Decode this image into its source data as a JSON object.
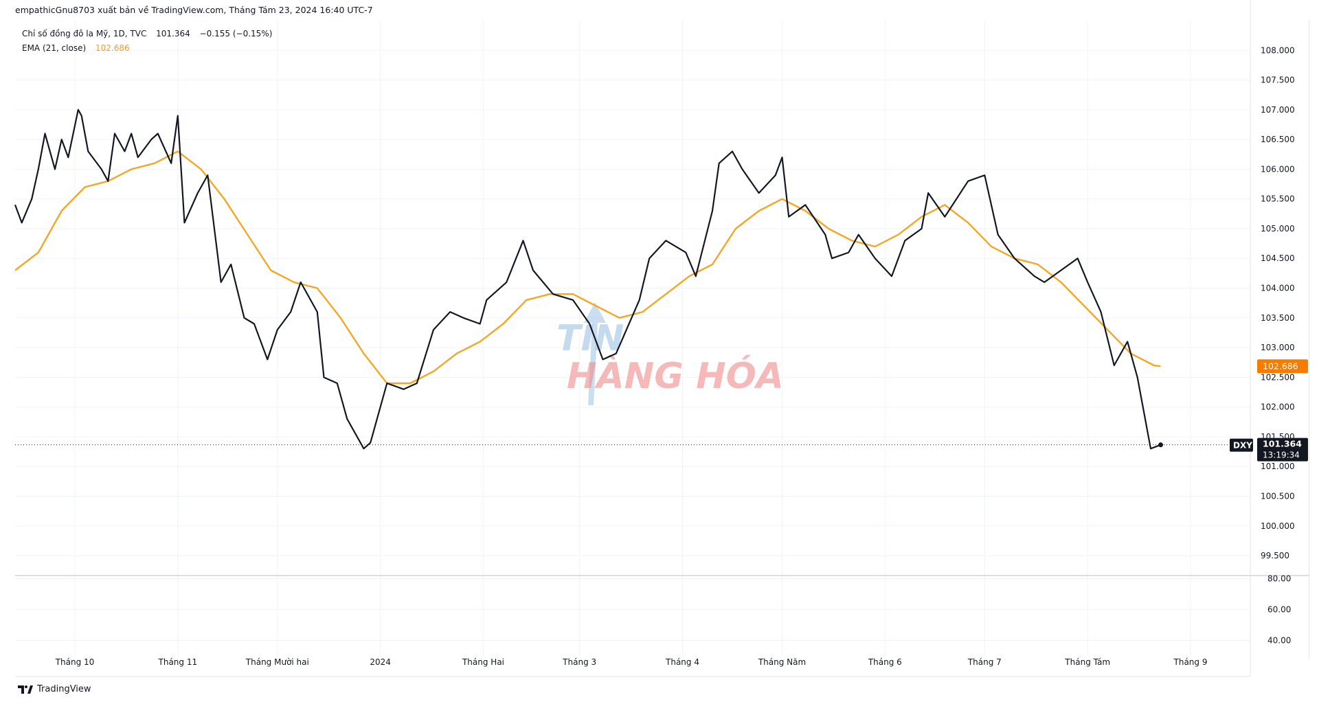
{
  "header": {
    "publisher": "empathicGnu8703 xuất bản về TradingView.com, Tháng Tám 23, 2024 16:40 UTC-7"
  },
  "legend": {
    "symbol_line": "Chỉ số đồng đô la Mỹ, 1D, TVC",
    "last_price": "101.364",
    "change": "−0.155 (−0.15%)",
    "ema_label": "EMA (21, close)",
    "ema_value": "102.686"
  },
  "watermark": {
    "line1": "TIN",
    "line2": "HÀNG HÓA"
  },
  "price_badge": {
    "symbol": "DXY",
    "price": "101.364",
    "countdown": "13:19:34",
    "ema_tag": "102.686"
  },
  "footer": {
    "brand": "TradingView"
  },
  "colors": {
    "price_line": "#131722",
    "ema_line": "#f5a623",
    "ema_badge": "#f57c00",
    "grid": "#f0f3fa"
  },
  "chart_data": {
    "type": "line",
    "title": "Chỉ số đồng đô la Mỹ, 1D, TVC",
    "ylim": [
      99.2,
      108.5
    ],
    "y_ticks": [
      "108.000",
      "107.500",
      "107.000",
      "106.500",
      "106.000",
      "105.500",
      "105.000",
      "104.500",
      "104.000",
      "103.500",
      "103.000",
      "102.500",
      "102.000",
      "101.500",
      "101.000",
      "100.500",
      "100.000",
      "99.500"
    ],
    "x_ticks": [
      "Tháng 10",
      "Tháng 11",
      "Tháng Mười hai",
      "2024",
      "Tháng Hai",
      "Tháng 3",
      "Tháng 4",
      "Tháng Năm",
      "Tháng 6",
      "Tháng 7",
      "Tháng Tám",
      "Tháng 9"
    ],
    "x_range": [
      "2023-09-13",
      "2024-09-19"
    ],
    "lower_pane": {
      "ticks": [
        "80.00",
        "60.00",
        "40.00"
      ],
      "ylim": [
        30,
        82
      ]
    },
    "series": [
      {
        "name": "Chỉ số đồng đô la Mỹ",
        "x": [
          "2023-09-13",
          "2023-09-15",
          "2023-09-18",
          "2023-09-20",
          "2023-09-22",
          "2023-09-25",
          "2023-09-27",
          "2023-09-29",
          "2023-10-02",
          "2023-10-03",
          "2023-10-05",
          "2023-10-09",
          "2023-10-11",
          "2023-10-13",
          "2023-10-16",
          "2023-10-18",
          "2023-10-20",
          "2023-10-24",
          "2023-10-26",
          "2023-10-30",
          "2023-11-01",
          "2023-11-03",
          "2023-11-07",
          "2023-11-10",
          "2023-11-14",
          "2023-11-17",
          "2023-11-21",
          "2023-11-24",
          "2023-11-28",
          "2023-12-01",
          "2023-12-05",
          "2023-12-08",
          "2023-12-13",
          "2023-12-15",
          "2023-12-19",
          "2023-12-22",
          "2023-12-27",
          "2023-12-29",
          "2024-01-03",
          "2024-01-08",
          "2024-01-12",
          "2024-01-17",
          "2024-01-22",
          "2024-01-26",
          "2024-01-31",
          "2024-02-02",
          "2024-02-08",
          "2024-02-13",
          "2024-02-16",
          "2024-02-22",
          "2024-02-28",
          "2024-03-04",
          "2024-03-08",
          "2024-03-12",
          "2024-03-19",
          "2024-03-22",
          "2024-03-27",
          "2024-04-02",
          "2024-04-05",
          "2024-04-10",
          "2024-04-12",
          "2024-04-16",
          "2024-04-19",
          "2024-04-24",
          "2024-04-29",
          "2024-05-01",
          "2024-05-03",
          "2024-05-08",
          "2024-05-14",
          "2024-05-16",
          "2024-05-21",
          "2024-05-24",
          "2024-05-29",
          "2024-06-03",
          "2024-06-07",
          "2024-06-12",
          "2024-06-14",
          "2024-06-19",
          "2024-06-26",
          "2024-07-01",
          "2024-07-05",
          "2024-07-10",
          "2024-07-16",
          "2024-07-19",
          "2024-07-24",
          "2024-07-29",
          "2024-08-01",
          "2024-08-05",
          "2024-08-09",
          "2024-08-13",
          "2024-08-16",
          "2024-08-20",
          "2024-08-23"
        ],
        "y": [
          105.4,
          105.1,
          105.5,
          106.0,
          106.6,
          106.0,
          106.5,
          106.2,
          107.0,
          106.9,
          106.3,
          106.0,
          105.8,
          106.6,
          106.3,
          106.6,
          106.2,
          106.5,
          106.6,
          106.1,
          106.9,
          105.1,
          105.6,
          105.9,
          104.1,
          104.4,
          103.5,
          103.4,
          102.8,
          103.3,
          103.6,
          104.1,
          103.6,
          102.5,
          102.4,
          101.8,
          101.3,
          101.4,
          102.4,
          102.3,
          102.4,
          103.3,
          103.6,
          103.5,
          103.4,
          103.8,
          104.1,
          104.8,
          104.3,
          103.9,
          103.8,
          103.4,
          102.8,
          102.9,
          103.8,
          104.5,
          104.8,
          104.6,
          104.2,
          105.3,
          106.1,
          106.3,
          106.0,
          105.6,
          105.9,
          106.2,
          105.2,
          105.4,
          104.9,
          104.5,
          104.6,
          104.9,
          104.5,
          104.2,
          104.8,
          105.0,
          105.6,
          105.2,
          105.8,
          105.9,
          104.9,
          104.5,
          104.2,
          104.1,
          104.3,
          104.5,
          104.1,
          103.6,
          102.7,
          103.1,
          102.5,
          101.3,
          101.364
        ]
      },
      {
        "name": "EMA (21, close)",
        "x": [
          "2023-09-13",
          "2023-09-20",
          "2023-09-27",
          "2023-10-04",
          "2023-10-11",
          "2023-10-18",
          "2023-10-25",
          "2023-11-01",
          "2023-11-08",
          "2023-11-15",
          "2023-11-22",
          "2023-11-29",
          "2023-12-06",
          "2023-12-13",
          "2023-12-20",
          "2023-12-27",
          "2024-01-03",
          "2024-01-10",
          "2024-01-17",
          "2024-01-24",
          "2024-01-31",
          "2024-02-07",
          "2024-02-14",
          "2024-02-21",
          "2024-02-28",
          "2024-03-06",
          "2024-03-13",
          "2024-03-20",
          "2024-03-27",
          "2024-04-03",
          "2024-04-10",
          "2024-04-17",
          "2024-04-24",
          "2024-05-01",
          "2024-05-08",
          "2024-05-15",
          "2024-05-22",
          "2024-05-29",
          "2024-06-05",
          "2024-06-12",
          "2024-06-19",
          "2024-06-26",
          "2024-07-03",
          "2024-07-10",
          "2024-07-17",
          "2024-07-24",
          "2024-07-31",
          "2024-08-07",
          "2024-08-14",
          "2024-08-21",
          "2024-08-23"
        ],
        "y": [
          104.3,
          104.6,
          105.3,
          105.7,
          105.8,
          106.0,
          106.1,
          106.3,
          106.0,
          105.5,
          104.9,
          104.3,
          104.1,
          104.0,
          103.5,
          102.9,
          102.4,
          102.4,
          102.6,
          102.9,
          103.1,
          103.4,
          103.8,
          103.9,
          103.9,
          103.7,
          103.5,
          103.6,
          103.9,
          104.2,
          104.4,
          105.0,
          105.3,
          105.5,
          105.3,
          105.0,
          104.8,
          104.7,
          104.9,
          105.2,
          105.4,
          105.1,
          104.7,
          104.5,
          104.4,
          104.1,
          103.7,
          103.3,
          102.9,
          102.7,
          102.686
        ]
      }
    ]
  }
}
